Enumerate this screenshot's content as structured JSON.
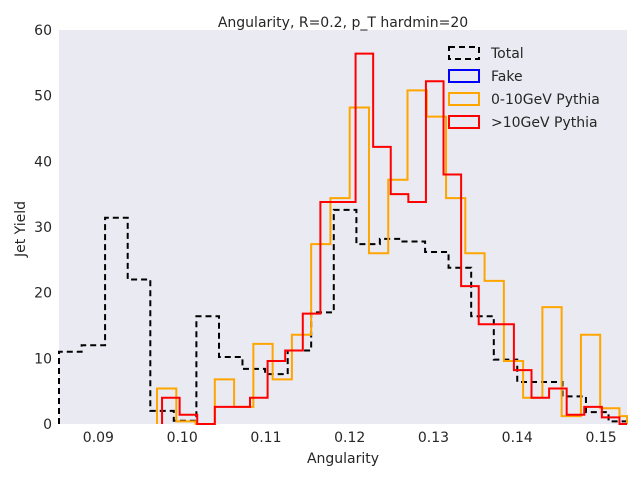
{
  "chart_data": {
    "type": "histogram-step",
    "title": "Angularity, R=0.2, p_T hardmin=20",
    "xlabel": "Angularity",
    "ylabel": "Jet Yield",
    "xlim": [
      0.0853,
      0.1531
    ],
    "ylim": [
      0,
      60
    ],
    "xticks": [
      "0.09",
      "0.10",
      "0.11",
      "0.12",
      "0.13",
      "0.14",
      "0.15"
    ],
    "xtick_values": [
      0.09,
      0.1,
      0.11,
      0.12,
      0.13,
      0.14,
      0.15
    ],
    "yticks": [
      "0",
      "10",
      "20",
      "30",
      "40",
      "50",
      "60"
    ],
    "ytick_values": [
      0,
      10,
      20,
      30,
      40,
      50,
      60
    ],
    "grid": false,
    "background": "#EAEAF2",
    "legend_position": "top-right",
    "legend": [
      {
        "label": "Total",
        "color": "#000000",
        "style": "dashed"
      },
      {
        "label": "Fake",
        "color": "#0000FF",
        "style": "solid"
      },
      {
        "label": "0-10GeV Pythia",
        "color": "#FFA500",
        "style": "solid"
      },
      {
        "label": ">10GeV Pythia",
        "color": "#FF0000",
        "style": "solid"
      }
    ],
    "series": [
      {
        "name": "Total",
        "color": "#000000",
        "dash": true,
        "edges": [
          0.0853,
          0.088,
          0.0908,
          0.0935,
          0.0962,
          0.099,
          0.1017,
          0.1044,
          0.1072,
          0.1099,
          0.1126,
          0.1154,
          0.1181,
          0.1208,
          0.1236,
          0.1263,
          0.129,
          0.1318,
          0.1345,
          0.1372,
          0.14,
          0.1427,
          0.1454,
          0.1482,
          0.1509,
          0.1531
        ],
        "values": [
          11.0,
          12.0,
          31.4,
          22.0,
          2.0,
          0.5,
          16.4,
          10.2,
          8.4,
          7.6,
          11.2,
          17.0,
          32.6,
          27.4,
          28.2,
          27.8,
          26.2,
          23.8,
          16.4,
          9.8,
          6.4,
          6.4,
          4.2,
          1.8,
          0.4
        ]
      },
      {
        "name": "Fake",
        "color": "#0000FF",
        "dash": false,
        "edges": [],
        "values": []
      },
      {
        "name": "0-10GeV Pythia",
        "color": "#FFA500",
        "dash": false,
        "edges": [
          0.097,
          0.0993,
          0.1016,
          0.1039,
          0.1062,
          0.1085,
          0.1108,
          0.1131,
          0.1154,
          0.1177,
          0.12,
          0.1223,
          0.1246,
          0.1269,
          0.1292,
          0.1315,
          0.1338,
          0.1361,
          0.1384,
          0.1407,
          0.143,
          0.1453,
          0.1476,
          0.1499,
          0.1522,
          0.1531
        ],
        "values": [
          5.4,
          0.4,
          0,
          6.8,
          2.6,
          12.2,
          6.8,
          13.6,
          27.4,
          34.4,
          48.2,
          26.0,
          37.2,
          50.8,
          46.8,
          34.4,
          26.0,
          21.8,
          9.6,
          4.0,
          17.8,
          1.2,
          13.6,
          2.4,
          1.2
        ]
      },
      {
        "name": ">10GeV Pythia",
        "color": "#FF0000",
        "dash": false,
        "edges": [
          0.0976,
          0.0997,
          0.1018,
          0.1039,
          0.106,
          0.1081,
          0.1102,
          0.1123,
          0.1144,
          0.1165,
          0.1186,
          0.1207,
          0.1228,
          0.1249,
          0.127,
          0.1291,
          0.1312,
          0.1333,
          0.1354,
          0.1375,
          0.1396,
          0.1417,
          0.1438,
          0.1459,
          0.148,
          0.1501,
          0.1522,
          0.1531
        ],
        "values": [
          4.0,
          1.4,
          0,
          2.6,
          2.6,
          4.0,
          9.6,
          11.2,
          16.8,
          33.8,
          33.8,
          56.4,
          42.2,
          35.0,
          33.8,
          52.2,
          38.0,
          21.0,
          15.2,
          15.2,
          8.2,
          4.0,
          5.4,
          1.4,
          2.6,
          1.0,
          0
        ]
      }
    ]
  }
}
